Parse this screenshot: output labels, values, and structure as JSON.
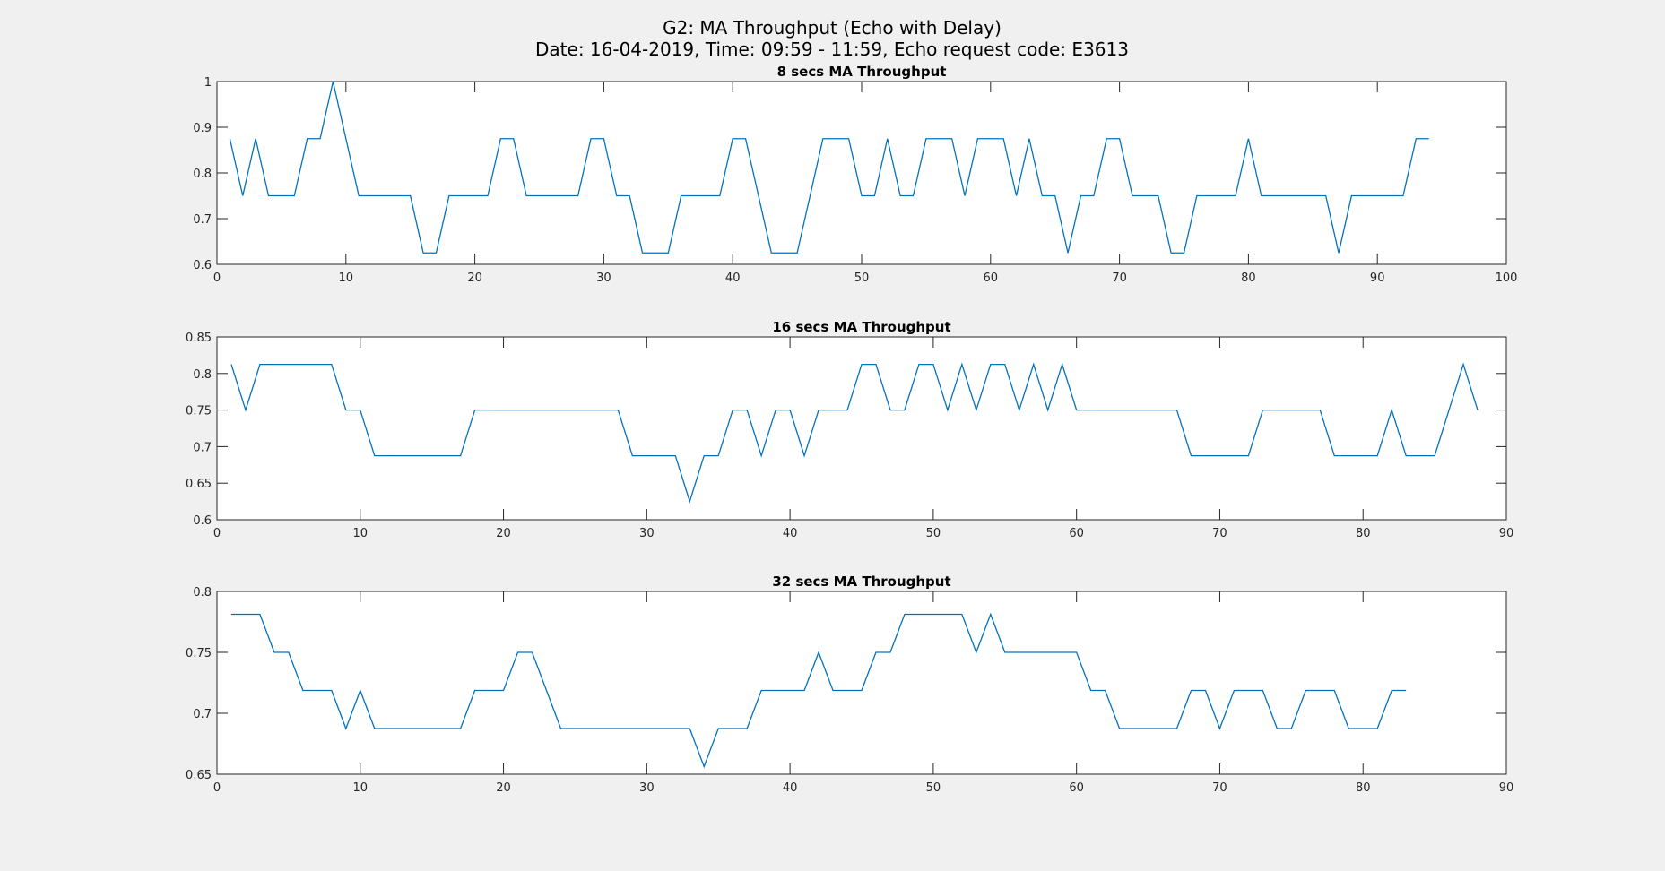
{
  "figure": {
    "title_line1": "G2: MA Throughput (Echo with Delay)",
    "title_line2": "Date: 16-04-2019, Time: 09:59 - 11:59, Echo request code: E3613",
    "line_color": "#0072bd",
    "axes_color": "#262626",
    "plot_bg": "#ffffff"
  },
  "chart_data": [
    {
      "type": "line",
      "title": "8 secs MA Throughput",
      "xlabel": "",
      "ylabel": "",
      "xlim": [
        0,
        100
      ],
      "ylim": [
        0.6,
        1
      ],
      "x_ticks": [
        0,
        10,
        20,
        30,
        40,
        50,
        60,
        70,
        80,
        90,
        100
      ],
      "y_ticks": [
        0.6,
        0.7,
        0.8,
        0.9,
        1
      ],
      "x_tick_labels": [
        "0",
        "10",
        "20",
        "30",
        "40",
        "50",
        "60",
        "70",
        "80",
        "90",
        "100"
      ],
      "y_tick_labels": [
        "0.6",
        "0.7",
        "0.8",
        "0.9",
        "1"
      ],
      "grid": false,
      "series": [
        {
          "x_start": 1,
          "values": [
            0.875,
            0.75,
            0.875,
            0.75,
            0.75,
            0.75,
            0.875,
            0.875,
            1.0,
            0.875,
            0.75,
            0.75,
            0.75,
            0.75,
            0.75,
            0.625,
            0.625,
            0.75,
            0.75,
            0.75,
            0.75,
            0.875,
            0.875,
            0.75,
            0.75,
            0.75,
            0.75,
            0.75,
            0.875,
            0.875,
            0.75,
            0.75,
            0.625,
            0.625,
            0.625,
            0.75,
            0.75,
            0.75,
            0.75,
            0.875,
            0.875,
            0.75,
            0.625,
            0.625,
            0.625,
            0.75,
            0.875,
            0.875,
            0.875,
            0.75,
            0.75,
            0.875,
            0.75,
            0.75,
            0.875,
            0.875,
            0.875,
            0.75,
            0.875,
            0.875,
            0.875,
            0.75,
            0.875,
            0.75,
            0.75,
            0.625,
            0.75,
            0.75,
            0.875,
            0.875,
            0.75,
            0.75,
            0.75,
            0.625,
            0.625,
            0.75,
            0.75,
            0.75,
            0.75,
            0.875,
            0.75,
            0.75,
            0.75,
            0.75,
            0.75,
            0.75,
            0.625,
            0.75,
            0.75,
            0.75,
            0.75,
            0.75,
            0.875,
            0.875
          ]
        }
      ]
    },
    {
      "type": "line",
      "title": "16 secs MA Throughput",
      "xlabel": "",
      "ylabel": "",
      "xlim": [
        0,
        90
      ],
      "ylim": [
        0.6,
        0.85
      ],
      "x_ticks": [
        0,
        10,
        20,
        30,
        40,
        50,
        60,
        70,
        80,
        90
      ],
      "y_ticks": [
        0.6,
        0.65,
        0.7,
        0.75,
        0.8,
        0.85
      ],
      "x_tick_labels": [
        "0",
        "10",
        "20",
        "30",
        "40",
        "50",
        "60",
        "70",
        "80",
        "90"
      ],
      "y_tick_labels": [
        "0.6",
        "0.65",
        "0.7",
        "0.75",
        "0.8",
        "0.85"
      ],
      "grid": false,
      "series": [
        {
          "x_start": 1,
          "values": [
            0.8125,
            0.75,
            0.8125,
            0.8125,
            0.8125,
            0.8125,
            0.8125,
            0.8125,
            0.75,
            0.75,
            0.6875,
            0.6875,
            0.6875,
            0.6875,
            0.6875,
            0.6875,
            0.6875,
            0.75,
            0.75,
            0.75,
            0.75,
            0.75,
            0.75,
            0.75,
            0.75,
            0.75,
            0.75,
            0.75,
            0.6875,
            0.6875,
            0.6875,
            0.6875,
            0.625,
            0.6875,
            0.6875,
            0.75,
            0.75,
            0.6875,
            0.75,
            0.75,
            0.6875,
            0.75,
            0.75,
            0.75,
            0.8125,
            0.8125,
            0.75,
            0.75,
            0.8125,
            0.8125,
            0.75,
            0.8125,
            0.75,
            0.8125,
            0.8125,
            0.75,
            0.8125,
            0.75,
            0.8125,
            0.75,
            0.75,
            0.75,
            0.75,
            0.75,
            0.75,
            0.75,
            0.75,
            0.6875,
            0.6875,
            0.6875,
            0.6875,
            0.6875,
            0.75,
            0.75,
            0.75,
            0.75,
            0.75,
            0.6875,
            0.6875,
            0.6875,
            0.6875,
            0.75,
            0.6875,
            0.6875,
            0.6875,
            0.75,
            0.8125,
            0.75
          ]
        }
      ]
    },
    {
      "type": "line",
      "title": "32 secs MA Throughput",
      "xlabel": "",
      "ylabel": "",
      "xlim": [
        0,
        90
      ],
      "ylim": [
        0.65,
        0.8
      ],
      "x_ticks": [
        0,
        10,
        20,
        30,
        40,
        50,
        60,
        70,
        80,
        90
      ],
      "y_ticks": [
        0.65,
        0.7,
        0.75,
        0.8
      ],
      "x_tick_labels": [
        "0",
        "10",
        "20",
        "30",
        "40",
        "50",
        "60",
        "70",
        "80",
        "90"
      ],
      "y_tick_labels": [
        "0.65",
        "0.7",
        "0.75",
        "0.8"
      ],
      "grid": false,
      "series": [
        {
          "x_start": 1,
          "values": [
            0.78125,
            0.78125,
            0.78125,
            0.75,
            0.75,
            0.71875,
            0.71875,
            0.71875,
            0.6875,
            0.71875,
            0.6875,
            0.6875,
            0.6875,
            0.6875,
            0.6875,
            0.6875,
            0.6875,
            0.71875,
            0.71875,
            0.71875,
            0.75,
            0.75,
            0.71875,
            0.6875,
            0.6875,
            0.6875,
            0.6875,
            0.6875,
            0.6875,
            0.6875,
            0.6875,
            0.6875,
            0.6875,
            0.65625,
            0.6875,
            0.6875,
            0.6875,
            0.71875,
            0.71875,
            0.71875,
            0.71875,
            0.75,
            0.71875,
            0.71875,
            0.71875,
            0.75,
            0.75,
            0.78125,
            0.78125,
            0.78125,
            0.78125,
            0.78125,
            0.75,
            0.78125,
            0.75,
            0.75,
            0.75,
            0.75,
            0.75,
            0.75,
            0.71875,
            0.71875,
            0.6875,
            0.6875,
            0.6875,
            0.6875,
            0.6875,
            0.71875,
            0.71875,
            0.6875,
            0.71875,
            0.71875,
            0.71875,
            0.6875,
            0.6875,
            0.71875,
            0.71875,
            0.71875,
            0.6875,
            0.6875,
            0.6875,
            0.71875,
            0.71875
          ]
        }
      ]
    }
  ]
}
